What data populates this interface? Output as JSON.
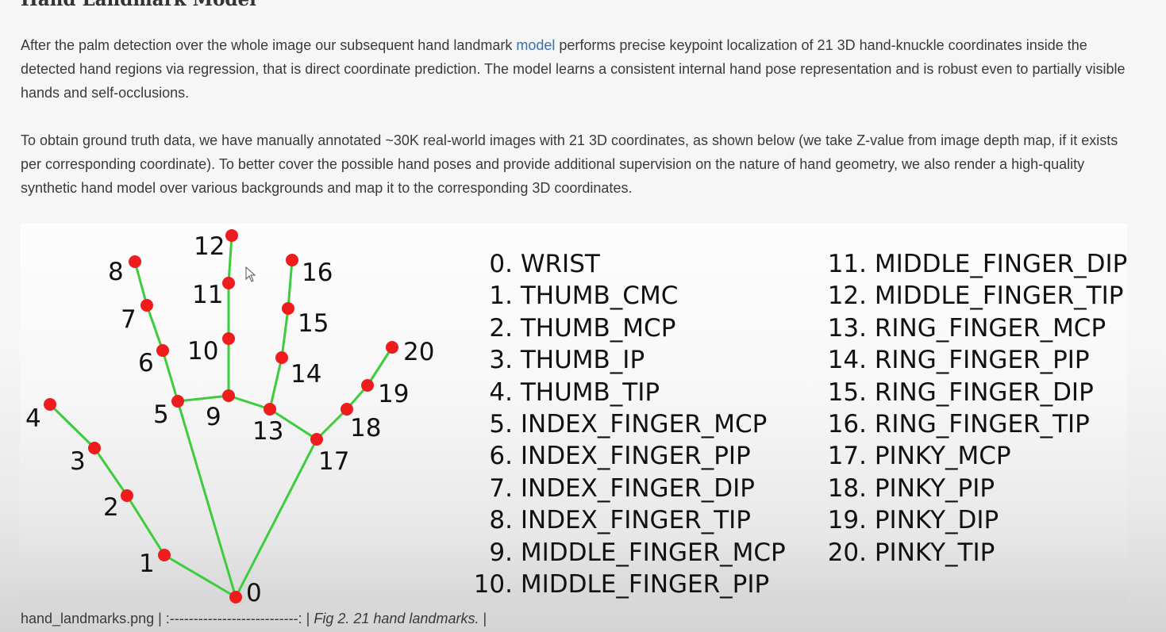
{
  "heading": "Hand Landmark Model",
  "para1": {
    "before_link": "After the palm detection over the whole image our subsequent hand landmark ",
    "link": "model",
    "after_link": " performs precise keypoint localization of 21 3D hand-knuckle coordinates inside the detected hand regions via regression, that is direct coordinate prediction. The model learns a consistent internal hand pose representation and is robust even to partially visible hands and self-occlusions."
  },
  "para2": "To obtain ground truth data, we have manually annotated ~30K real-world images with 21 3D coordinates, as shown below (we take Z-value from image depth map, if it exists per corresponding coordinate). To better cover the possible hand poses and provide additional supervision on the nature of hand geometry, we also render a high-quality synthetic hand model over various backgrounds and map it to the corresponding 3D coordinates.",
  "colors": {
    "bone_line": "#3ccc3c",
    "keypoint": "#ee1c1c",
    "link": "#2f74b5"
  },
  "hand": {
    "point_labels": [
      "0",
      "1",
      "2",
      "3",
      "4",
      "5",
      "6",
      "7",
      "8",
      "9",
      "10",
      "11",
      "12",
      "13",
      "14",
      "15",
      "16",
      "17",
      "18",
      "19",
      "20"
    ],
    "connections": [
      [
        0,
        1
      ],
      [
        1,
        2
      ],
      [
        2,
        3
      ],
      [
        3,
        4
      ],
      [
        0,
        5
      ],
      [
        5,
        6
      ],
      [
        6,
        7
      ],
      [
        7,
        8
      ],
      [
        5,
        9
      ],
      [
        9,
        10
      ],
      [
        10,
        11
      ],
      [
        11,
        12
      ],
      [
        9,
        13
      ],
      [
        13,
        14
      ],
      [
        14,
        15
      ],
      [
        15,
        16
      ],
      [
        13,
        17
      ],
      [
        0,
        17
      ],
      [
        17,
        18
      ],
      [
        18,
        19
      ],
      [
        19,
        20
      ]
    ]
  },
  "landmarks_left": [
    {
      "num": "0.",
      "name": "WRIST"
    },
    {
      "num": "1.",
      "name": "THUMB_CMC"
    },
    {
      "num": "2.",
      "name": "THUMB_MCP"
    },
    {
      "num": "3.",
      "name": "THUMB_IP"
    },
    {
      "num": "4.",
      "name": "THUMB_TIP"
    },
    {
      "num": "5.",
      "name": "INDEX_FINGER_MCP"
    },
    {
      "num": "6.",
      "name": "INDEX_FINGER_PIP"
    },
    {
      "num": "7.",
      "name": "INDEX_FINGER_DIP"
    },
    {
      "num": "8.",
      "name": "INDEX_FINGER_TIP"
    },
    {
      "num": "9.",
      "name": "MIDDLE_FINGER_MCP"
    },
    {
      "num": "10.",
      "name": "MIDDLE_FINGER_PIP"
    }
  ],
  "landmarks_right": [
    {
      "num": "11.",
      "name": "MIDDLE_FINGER_DIP"
    },
    {
      "num": "12.",
      "name": "MIDDLE_FINGER_TIP"
    },
    {
      "num": "13.",
      "name": "RING_FINGER_MCP"
    },
    {
      "num": "14.",
      "name": "RING_FINGER_PIP"
    },
    {
      "num": "15.",
      "name": "RING_FINGER_DIP"
    },
    {
      "num": "16.",
      "name": "RING_FINGER_TIP"
    },
    {
      "num": "17.",
      "name": "PINKY_MCP"
    },
    {
      "num": "18.",
      "name": "PINKY_PIP"
    },
    {
      "num": "19.",
      "name": "PINKY_DIP"
    },
    {
      "num": "20.",
      "name": "PINKY_TIP"
    }
  ],
  "caption": {
    "plain": "hand_landmarks.png | :---------------------------: | ",
    "italic": "Fig 2. 21 hand landmarks.",
    "end": " |"
  }
}
